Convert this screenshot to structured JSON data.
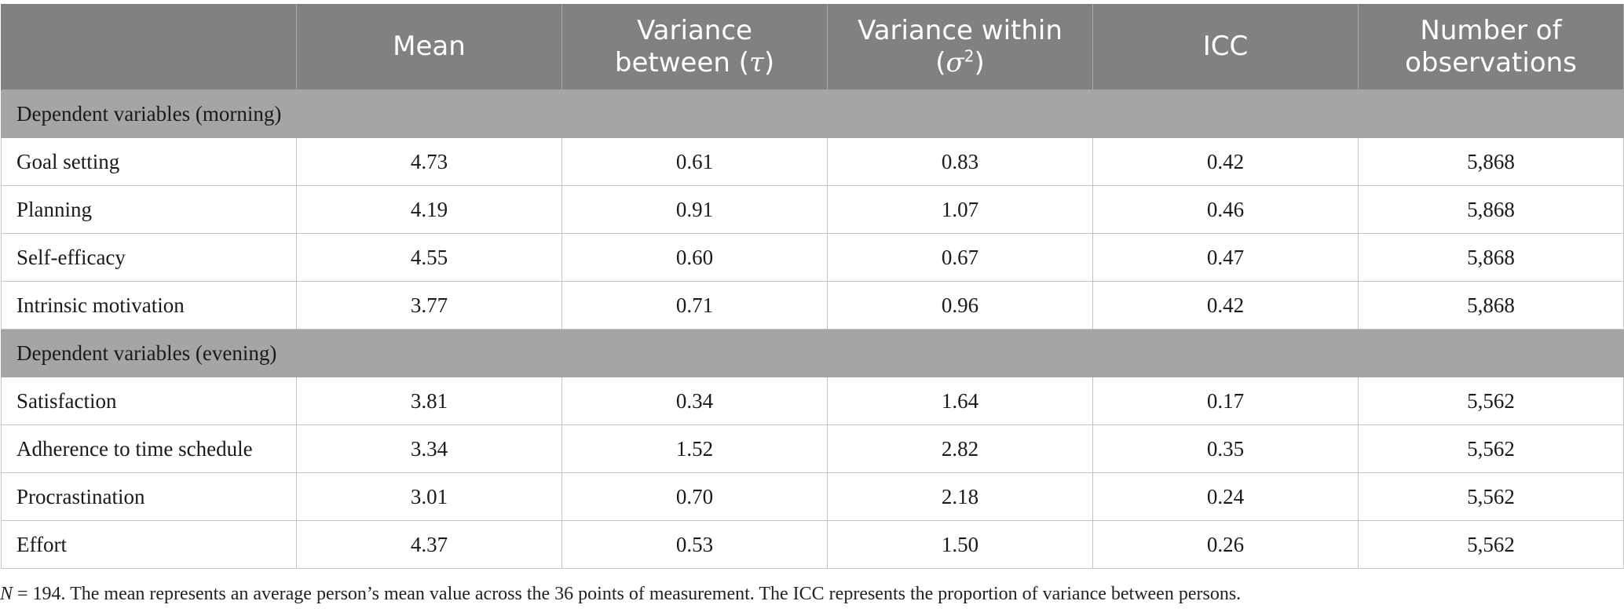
{
  "table": {
    "headers": {
      "col0": "",
      "mean": "Mean",
      "var_between_line1": "Variance",
      "var_between_line2": "between (",
      "var_between_symbol": "τ",
      "var_between_close": ")",
      "var_within_line1": "Variance within",
      "var_within_open": "(",
      "var_within_symbol": "σ",
      "var_within_sup": "2",
      "var_within_close": ")",
      "icc": "ICC",
      "obs_line1": "Number of",
      "obs_line2": "observations"
    },
    "section_morning": "Dependent variables (morning)",
    "section_evening": "Dependent variables (evening)",
    "rows": [
      {
        "label": "Goal setting",
        "mean": "4.73",
        "between": "0.61",
        "within": "0.83",
        "icc": "0.42",
        "n": "5,868"
      },
      {
        "label": "Planning",
        "mean": "4.19",
        "between": "0.91",
        "within": "1.07",
        "icc": "0.46",
        "n": "5,868"
      },
      {
        "label": "Self-efficacy",
        "mean": "4.55",
        "between": "0.60",
        "within": "0.67",
        "icc": "0.47",
        "n": "5,868"
      },
      {
        "label": "Intrinsic motivation",
        "mean": "3.77",
        "between": "0.71",
        "within": "0.96",
        "icc": "0.42",
        "n": "5,868"
      },
      {
        "label": "Satisfaction",
        "mean": "3.81",
        "between": "0.34",
        "within": "1.64",
        "icc": "0.17",
        "n": "5,562"
      },
      {
        "label": "Adherence to time schedule",
        "mean": "3.34",
        "between": "1.52",
        "within": "2.82",
        "icc": "0.35",
        "n": "5,562"
      },
      {
        "label": "Procrastination",
        "mean": "3.01",
        "between": "0.70",
        "within": "2.18",
        "icc": "0.24",
        "n": "5,562"
      },
      {
        "label": "Effort",
        "mean": "4.37",
        "between": "0.53",
        "within": "1.50",
        "icc": "0.26",
        "n": "5,562"
      }
    ]
  },
  "footnote": {
    "n_symbol": "N",
    "text": " = 194. The mean represents an average person’s mean value across the 36 points of measurement. The ICC represents the proportion of variance between persons."
  },
  "colors": {
    "header_bg": "#7f8280",
    "section_bg": "#a4a6a4",
    "border": "#c3c5c3"
  }
}
